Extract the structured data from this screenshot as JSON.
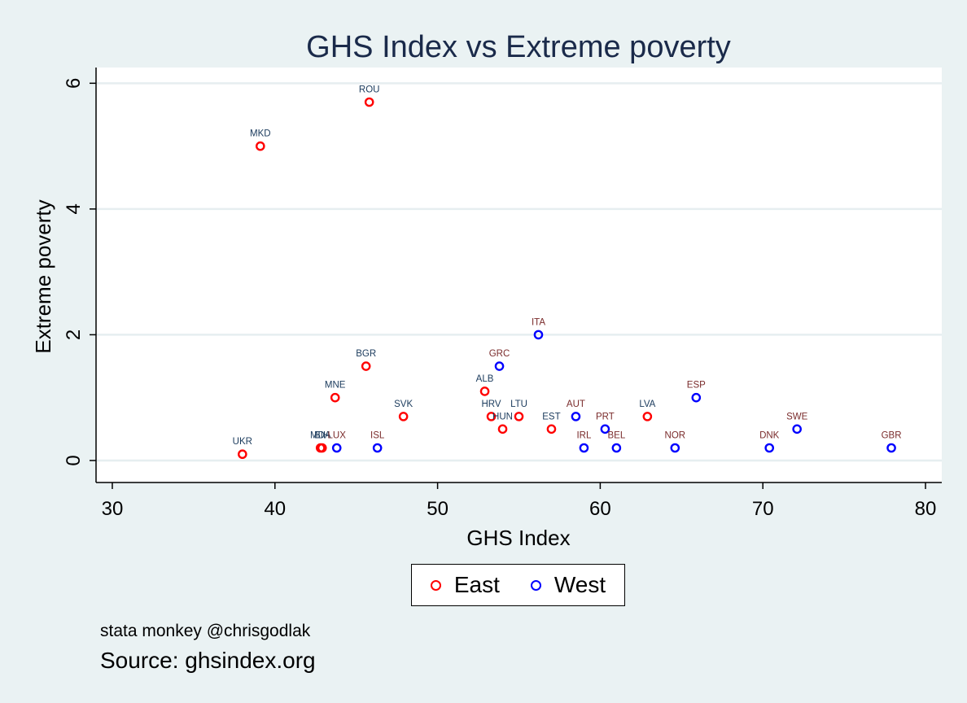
{
  "chart_data": {
    "type": "scatter",
    "title": "GHS Index vs Extreme poverty",
    "xlabel": "GHS Index",
    "ylabel": "Extreme poverty",
    "xlim": [
      29,
      81
    ],
    "ylim": [
      -0.35,
      6.25
    ],
    "xticks": [
      "30",
      "40",
      "50",
      "60",
      "70",
      "80"
    ],
    "yticks": [
      "0",
      "2",
      "4",
      "6"
    ],
    "grid": true,
    "legend_position": "bottom-center",
    "series": [
      {
        "name": "East",
        "color": "#ff0000",
        "label_color": "#1a3a5c",
        "points": [
          {
            "label": "ROU",
            "x": 45.8,
            "y": 5.7
          },
          {
            "label": "MKD",
            "x": 39.1,
            "y": 5.0
          },
          {
            "label": "BGR",
            "x": 45.6,
            "y": 1.5
          },
          {
            "label": "MNE",
            "x": 43.7,
            "y": 1.0
          },
          {
            "label": "SVK",
            "x": 47.9,
            "y": 0.7
          },
          {
            "label": "ALB",
            "x": 52.9,
            "y": 1.1
          },
          {
            "label": "HRV",
            "x": 53.3,
            "y": 0.7
          },
          {
            "label": "HUN",
            "x": 54.0,
            "y": 0.5
          },
          {
            "label": "LTU",
            "x": 55.0,
            "y": 0.7
          },
          {
            "label": "EST",
            "x": 57.0,
            "y": 0.5
          },
          {
            "label": "LVA",
            "x": 62.9,
            "y": 0.7
          },
          {
            "label": "UKR",
            "x": 38.0,
            "y": 0.1
          },
          {
            "label": "MDA",
            "x": 42.8,
            "y": 0.2
          },
          {
            "label": "BIH",
            "x": 42.9,
            "y": 0.2
          }
        ]
      },
      {
        "name": "West",
        "color": "#0000ff",
        "label_color": "#7a2b2b",
        "points": [
          {
            "label": "ITA",
            "x": 56.2,
            "y": 2.0
          },
          {
            "label": "GRC",
            "x": 53.8,
            "y": 1.5
          },
          {
            "label": "ESP",
            "x": 65.9,
            "y": 1.0
          },
          {
            "label": "AUT",
            "x": 58.5,
            "y": 0.7
          },
          {
            "label": "PRT",
            "x": 60.3,
            "y": 0.5
          },
          {
            "label": "SWE",
            "x": 72.1,
            "y": 0.5
          },
          {
            "label": "LUX",
            "x": 43.8,
            "y": 0.2
          },
          {
            "label": "ISL",
            "x": 46.3,
            "y": 0.2
          },
          {
            "label": "IRL",
            "x": 59.0,
            "y": 0.2
          },
          {
            "label": "BEL",
            "x": 61.0,
            "y": 0.2
          },
          {
            "label": "NOR",
            "x": 64.6,
            "y": 0.2
          },
          {
            "label": "DNK",
            "x": 70.4,
            "y": 0.2
          },
          {
            "label": "GBR",
            "x": 77.9,
            "y": 0.2
          }
        ]
      }
    ],
    "note": "stata monkey @chrisgodlak",
    "source": "Source: ghsindex.org"
  }
}
